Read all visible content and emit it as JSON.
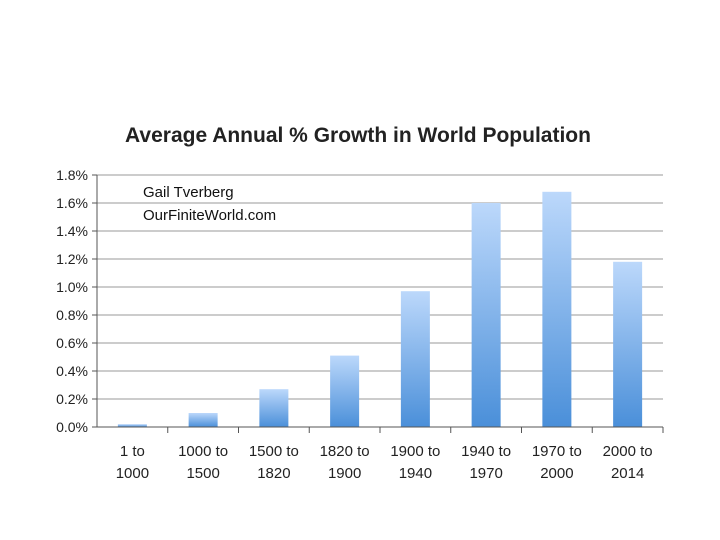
{
  "chart_data": {
    "type": "bar",
    "title": "Average Annual % Growth in World Population",
    "xlabel": "",
    "ylabel": "",
    "ylim": [
      0,
      1.8
    ],
    "yticks": [
      "0.0%",
      "0.2%",
      "0.4%",
      "0.6%",
      "0.8%",
      "1.0%",
      "1.2%",
      "1.4%",
      "1.6%",
      "1.8%"
    ],
    "categories": [
      [
        "1  to",
        "1000"
      ],
      [
        "1000 to",
        "1500"
      ],
      [
        "1500 to",
        "1820"
      ],
      [
        "1820 to",
        "1900"
      ],
      [
        "1900 to",
        "1940"
      ],
      [
        "1940 to",
        "1970"
      ],
      [
        "1970 to",
        "2000"
      ],
      [
        "2000 to",
        "2014"
      ]
    ],
    "values": [
      0.02,
      0.1,
      0.27,
      0.51,
      0.97,
      1.6,
      1.68,
      1.18
    ],
    "grid": true,
    "annotations": [
      "Gail Tverberg",
      "OurFiniteWorld.com"
    ],
    "colors": {
      "bar_top": "#bcd8fb",
      "bar_bottom": "#4a8fd9",
      "grid": "#9a9a9a",
      "axis": "#555555"
    }
  }
}
